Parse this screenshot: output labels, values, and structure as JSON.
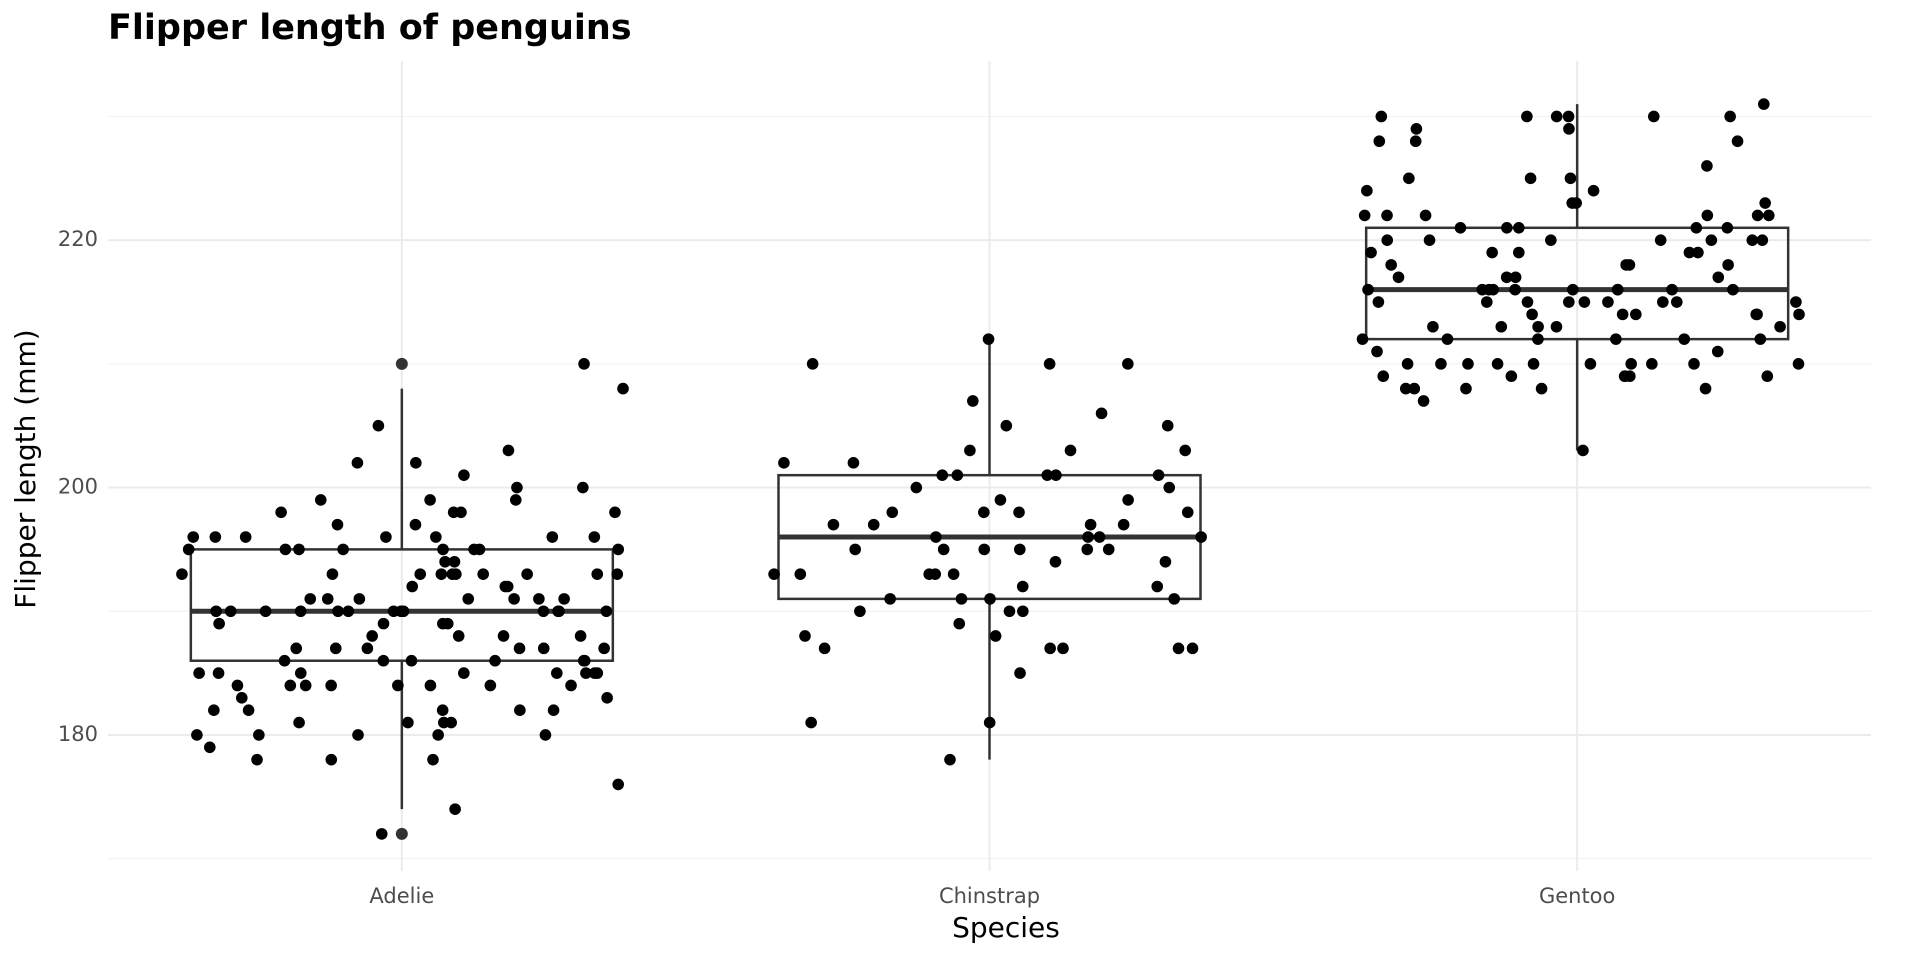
{
  "chart_data": {
    "type": "box",
    "title": "Flipper length of penguins",
    "x_label": "Species",
    "y_label": "Flipper length (mm)",
    "categories": [
      "Adelie",
      "Chinstrap",
      "Gentoo"
    ],
    "boxes": [
      {
        "min": 174,
        "q1": 186,
        "median": 190,
        "q3": 195,
        "max": 208,
        "outliers": [
          210,
          172
        ]
      },
      {
        "min": 178,
        "q1": 191,
        "median": 196,
        "q3": 201,
        "max": 212,
        "outliers": []
      },
      {
        "min": 203,
        "q1": 212,
        "median": 216,
        "q3": 221,
        "max": 231,
        "outliers": []
      }
    ],
    "points": [
      [
        203,
        184,
        172,
        185,
        180,
        191,
        190,
        192,
        186,
        195,
        189,
        181,
        180,
        185,
        184,
        187,
        195,
        176,
        186,
        191,
        190,
        185,
        188,
        196,
        198,
        182,
        182,
        186,
        180,
        193,
        199,
        195,
        191,
        178,
        190,
        185,
        190,
        184,
        187,
        193,
        190,
        201,
        196,
        190,
        191,
        192,
        189,
        188,
        193,
        200,
        190,
        187,
        184,
        182,
        210,
        191,
        178,
        198,
        181,
        181,
        184,
        185,
        187,
        183,
        184,
        190,
        195,
        202,
        202,
        194,
        205,
        196,
        193,
        188,
        191,
        186,
        187,
        198,
        181,
        185,
        197,
        190,
        193,
        187,
        193,
        193,
        184,
        186,
        180,
        178,
        190,
        185,
        194,
        195,
        182,
        190,
        196,
        189,
        195,
        193,
        180,
        197,
        184,
        190,
        186,
        191,
        200,
        179,
        195,
        193,
        196,
        193,
        198,
        174,
        183,
        185,
        196,
        190,
        188,
        199,
        196,
        208,
        195,
        192,
        189,
        199,
        182
      ],
      [
        193,
        193,
        200,
        203,
        205,
        185,
        198,
        192,
        195,
        193,
        191,
        199,
        195,
        196,
        187,
        187,
        203,
        187,
        191,
        199,
        212,
        210,
        188,
        178,
        192,
        190,
        197,
        190,
        195,
        193,
        201,
        202,
        201,
        202,
        197,
        196,
        210,
        207,
        191,
        201,
        193,
        181,
        181,
        195,
        198,
        197,
        196,
        201,
        206,
        210,
        195,
        189,
        187,
        196,
        194,
        200,
        187,
        190,
        205,
        194,
        201,
        198,
        198,
        197,
        203,
        188,
        191,
        195
      ],
      [
        208,
        215,
        214,
        218,
        222,
        220,
        225,
        230,
        230,
        216,
        212,
        214,
        208,
        209,
        212,
        216,
        220,
        222,
        224,
        228,
        210,
        208,
        210,
        213,
        217,
        215,
        220,
        220,
        230,
        219,
        221,
        223,
        207,
        215,
        215,
        222,
        229,
        230,
        216,
        219,
        210,
        218,
        228,
        221,
        212,
        216,
        221,
        214,
        218,
        219,
        215,
        214,
        216,
        228,
        216,
        208,
        209,
        210,
        210,
        217,
        215,
        220,
        213,
        216,
        222,
        217,
        218,
        219,
        211,
        219,
        216,
        203,
        217,
        220,
        210,
        224,
        226,
        225,
        230,
        222,
        213,
        221,
        209,
        210,
        212,
        231,
        225,
        230,
        222,
        214,
        213,
        216,
        215,
        211,
        223,
        214,
        209,
        210,
        223,
        216,
        213,
        220,
        212,
        221,
        210,
        229,
        215,
        209,
        210,
        215,
        208,
        209,
        212
      ]
    ],
    "point_color": "#000000",
    "box_color": "#333333",
    "ylim": [
      169,
      234
    ],
    "yticks": [
      180,
      200,
      220
    ],
    "minor_yticks": [
      170,
      190,
      210,
      230
    ],
    "grid": true
  }
}
